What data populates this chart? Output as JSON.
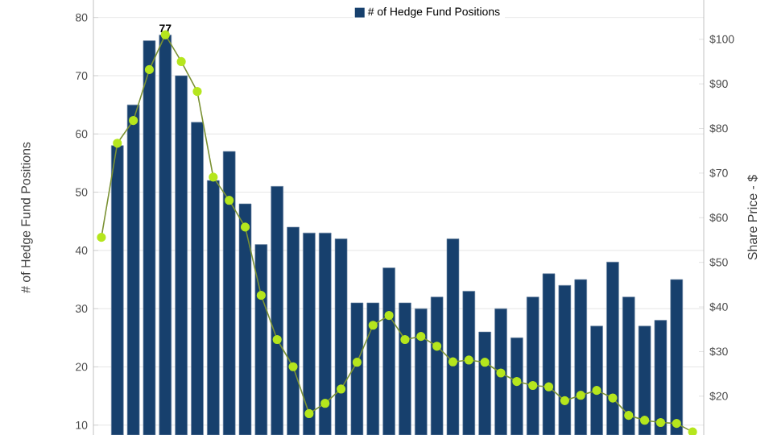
{
  "chart_data": {
    "type": "bar",
    "ylabel": "# of Hedge Fund Positions",
    "y2label": "Share Price - $",
    "categories": [
      null,
      null,
      null,
      null,
      null,
      null,
      null,
      null,
      null,
      null,
      null,
      null,
      null,
      null,
      null,
      null,
      null,
      null,
      null,
      null,
      null,
      null,
      null,
      null,
      null,
      null,
      null,
      null,
      null,
      null,
      null,
      null,
      null,
      null,
      null,
      null,
      null,
      null
    ],
    "series": [
      {
        "name": "# of Hedge Fund Positions",
        "color": "#17406d",
        "values": [
          null,
          58,
          65,
          76,
          77,
          70,
          62,
          52,
          57,
          48,
          41,
          51,
          44,
          43,
          43,
          42,
          31,
          31,
          37,
          31,
          30,
          32,
          42,
          33,
          26,
          30,
          25,
          32,
          36,
          34,
          35,
          27,
          38,
          32,
          27,
          28,
          35,
          null
        ],
        "value_labels": [
          null,
          null,
          null,
          null,
          "77",
          null,
          null,
          null,
          null,
          null,
          null,
          null,
          null,
          null,
          null,
          null,
          null,
          null,
          null,
          null,
          null,
          null,
          null,
          null,
          null,
          null,
          null,
          null,
          null,
          null,
          null,
          null,
          null,
          null,
          null,
          null,
          null,
          null
        ]
      },
      {
        "type": "line",
        "axis": "y2",
        "color": "#b5e61d",
        "values": [
          55.6,
          76.7,
          81.8,
          93.2,
          101,
          95,
          88.3,
          69.1,
          63.9,
          57.9,
          42.6,
          32.7,
          26.6,
          16.1,
          18.4,
          21.6,
          27.6,
          35.9,
          38.1,
          32.7,
          33.4,
          31.2,
          27.7,
          28.1,
          27.6,
          25.2,
          23.3,
          22.4,
          22.1,
          19,
          20.2,
          21.3,
          19.6,
          15.7,
          14.6,
          14.1,
          13.9,
          12
        ]
      }
    ],
    "ylim": [
      8.3,
      83
    ],
    "yticks": [
      10,
      20,
      30,
      40,
      50,
      60,
      70,
      80
    ],
    "y2lim": [
      11.3,
      108.8
    ],
    "y2ticks": [
      {
        "value": 20,
        "label": "$20"
      },
      {
        "value": 30,
        "label": "$30"
      },
      {
        "value": 40,
        "label": "$40"
      },
      {
        "value": 50,
        "label": "$50"
      },
      {
        "value": 60,
        "label": "$60"
      },
      {
        "value": 70,
        "label": "$70"
      },
      {
        "value": 80,
        "label": "$80"
      },
      {
        "value": 90,
        "label": "$90"
      },
      {
        "value": 100,
        "label": "$100"
      }
    ],
    "grid": "y",
    "legend": "top",
    "marker": "circle"
  }
}
